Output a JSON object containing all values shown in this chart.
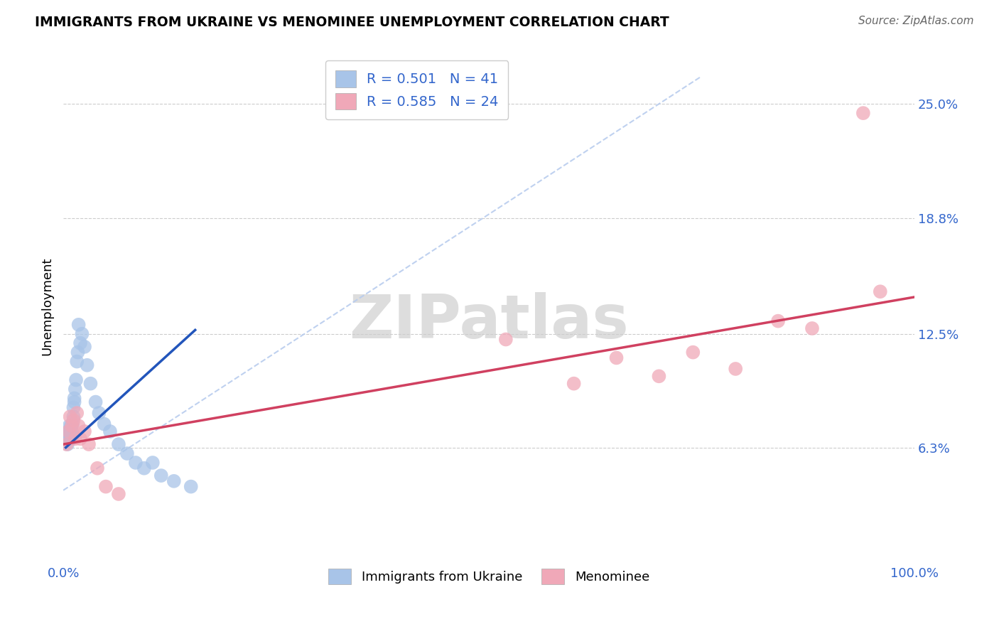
{
  "title": "IMMIGRANTS FROM UKRAINE VS MENOMINEE UNEMPLOYMENT CORRELATION CHART",
  "source": "Source: ZipAtlas.com",
  "ylabel": "Unemployment",
  "xlim": [
    0.0,
    1.0
  ],
  "ylim": [
    0.0,
    0.28
  ],
  "yticks": [
    0.063,
    0.125,
    0.188,
    0.25
  ],
  "ytick_labels": [
    "6.3%",
    "12.5%",
    "18.8%",
    "25.0%"
  ],
  "xticks": [
    0.0,
    0.25,
    0.5,
    0.75,
    1.0
  ],
  "xtick_labels": [
    "0.0%",
    "",
    "",
    "",
    "100.0%"
  ],
  "legend_r1": "R = 0.501",
  "legend_n1": "N = 41",
  "legend_r2": "R = 0.585",
  "legend_n2": "N = 24",
  "blue_color": "#a8c4e8",
  "pink_color": "#f0a8b8",
  "blue_line_color": "#2255bb",
  "pink_line_color": "#d04060",
  "diag_color": "#b8ccee",
  "watermark": "ZIPatlas",
  "blue_x": [
    0.003,
    0.004,
    0.005,
    0.006,
    0.006,
    0.007,
    0.007,
    0.008,
    0.008,
    0.009,
    0.009,
    0.01,
    0.01,
    0.011,
    0.011,
    0.012,
    0.012,
    0.013,
    0.013,
    0.014,
    0.015,
    0.016,
    0.017,
    0.018,
    0.02,
    0.022,
    0.025,
    0.028,
    0.032,
    0.038,
    0.042,
    0.048,
    0.055,
    0.065,
    0.075,
    0.085,
    0.095,
    0.105,
    0.115,
    0.13,
    0.15
  ],
  "blue_y": [
    0.068,
    0.07,
    0.065,
    0.072,
    0.068,
    0.075,
    0.07,
    0.073,
    0.068,
    0.075,
    0.07,
    0.072,
    0.068,
    0.076,
    0.07,
    0.08,
    0.085,
    0.088,
    0.09,
    0.095,
    0.1,
    0.11,
    0.115,
    0.13,
    0.12,
    0.125,
    0.118,
    0.108,
    0.098,
    0.088,
    0.082,
    0.076,
    0.072,
    0.065,
    0.06,
    0.055,
    0.052,
    0.055,
    0.048,
    0.045,
    0.042
  ],
  "pink_x": [
    0.004,
    0.006,
    0.008,
    0.01,
    0.012,
    0.014,
    0.016,
    0.018,
    0.02,
    0.025,
    0.03,
    0.04,
    0.05,
    0.065,
    0.52,
    0.6,
    0.65,
    0.7,
    0.74,
    0.79,
    0.84,
    0.88,
    0.94,
    0.96
  ],
  "pink_y": [
    0.065,
    0.072,
    0.08,
    0.075,
    0.078,
    0.068,
    0.082,
    0.075,
    0.068,
    0.072,
    0.065,
    0.052,
    0.042,
    0.038,
    0.122,
    0.098,
    0.112,
    0.102,
    0.115,
    0.106,
    0.132,
    0.128,
    0.245,
    0.148
  ],
  "blue_line_x": [
    0.003,
    0.16
  ],
  "blue_line_y_intercept": 0.062,
  "blue_line_slope": 0.42,
  "pink_line_x": [
    0.0,
    1.0
  ],
  "pink_line_y_intercept": 0.065,
  "pink_line_slope": 0.08
}
